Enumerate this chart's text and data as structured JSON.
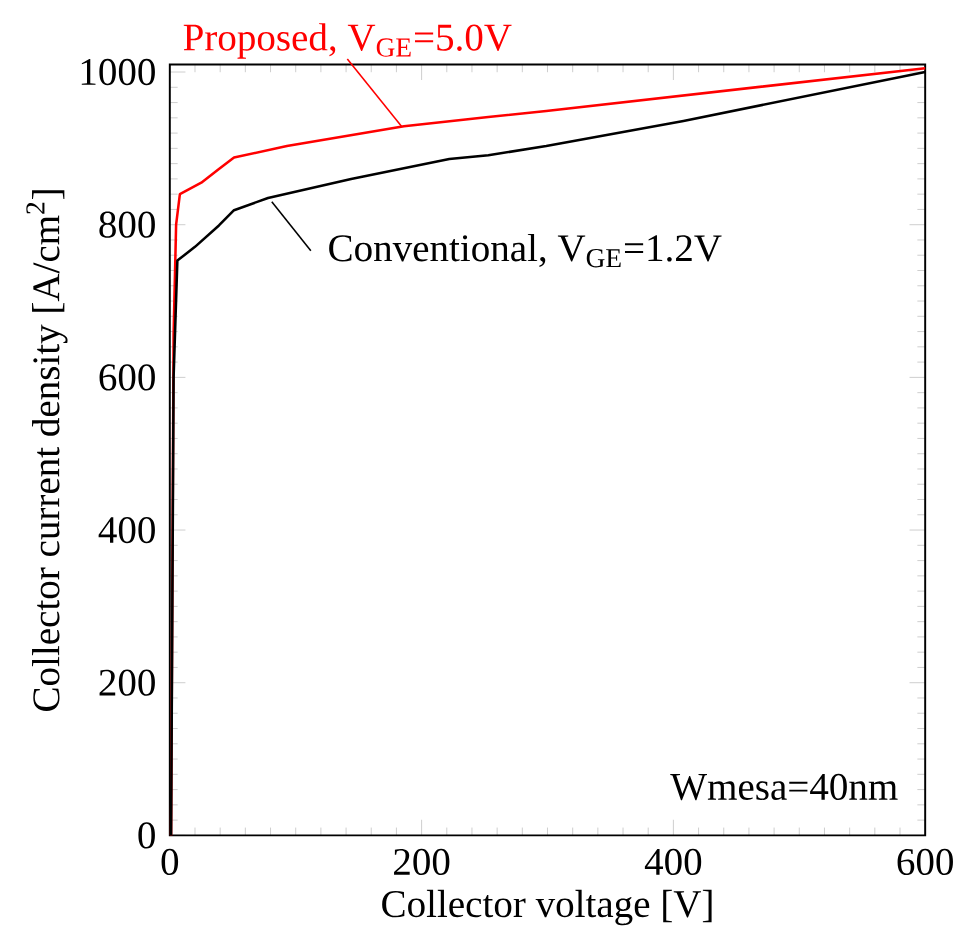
{
  "chart_data": {
    "type": "line",
    "xlabel": "Collector voltage [V]",
    "ylabel": "Collector current density [A/cm$^{2}$]",
    "xlim": [
      0,
      600
    ],
    "ylim": [
      0,
      1010
    ],
    "xticks": [
      0,
      200,
      400,
      600
    ],
    "yticks": [
      0,
      200,
      400,
      600,
      800,
      1000
    ],
    "series": [
      {
        "name": "Proposed, V$_{GE}$=5.0V",
        "color": "#ff0000",
        "x": [
          1,
          3,
          5,
          8,
          25,
          39,
          51,
          93,
          186,
          253,
          299,
          600
        ],
        "values": [
          0,
          656,
          800,
          840,
          855,
          873,
          888,
          903,
          929,
          941,
          949,
          1005
        ]
      },
      {
        "name": "Conventional, V$_{GE}$=1.2V",
        "color": "#000000",
        "x": [
          1,
          3,
          6,
          20,
          39,
          51,
          78,
          144,
          222,
          253,
          299,
          408,
          600
        ],
        "values": [
          0,
          600,
          753,
          771,
          799,
          819,
          835,
          860,
          886,
          891,
          903,
          936,
          1000
        ]
      }
    ],
    "annotations": [
      "Wmesa=40nm"
    ]
  }
}
